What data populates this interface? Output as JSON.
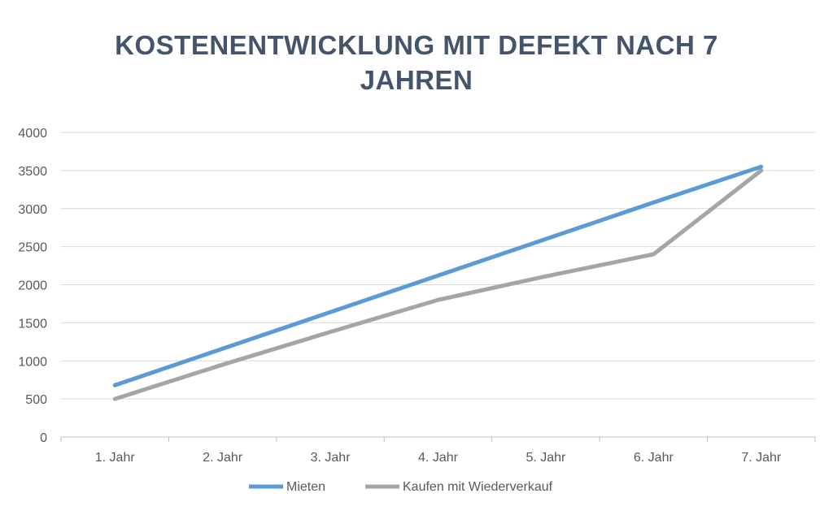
{
  "chart_data": {
    "type": "line",
    "title_line1": "KOSTENENTWICKLUNG MIT DEFEKT NACH 7",
    "title_line2": "JAHREN",
    "categories": [
      "1. Jahr",
      "2. Jahr",
      "3. Jahr",
      "4. Jahr",
      "5. Jahr",
      "6. Jahr",
      "7. Jahr"
    ],
    "ylim": [
      0,
      4000
    ],
    "yticks": [
      "0",
      "500",
      "1000",
      "1500",
      "2000",
      "2500",
      "3000",
      "3500",
      "4000"
    ],
    "grid": true,
    "legend_position": "bottom",
    "series": [
      {
        "name": "Mieten",
        "color": "#5b9bd5",
        "values": [
          680,
          1160,
          1640,
          2120,
          2600,
          3080,
          3550
        ]
      },
      {
        "name": "Kaufen mit Wiederverkauf",
        "color": "#a5a5a5",
        "values": [
          500,
          950,
          1380,
          1800,
          2110,
          2400,
          3500
        ]
      }
    ]
  }
}
